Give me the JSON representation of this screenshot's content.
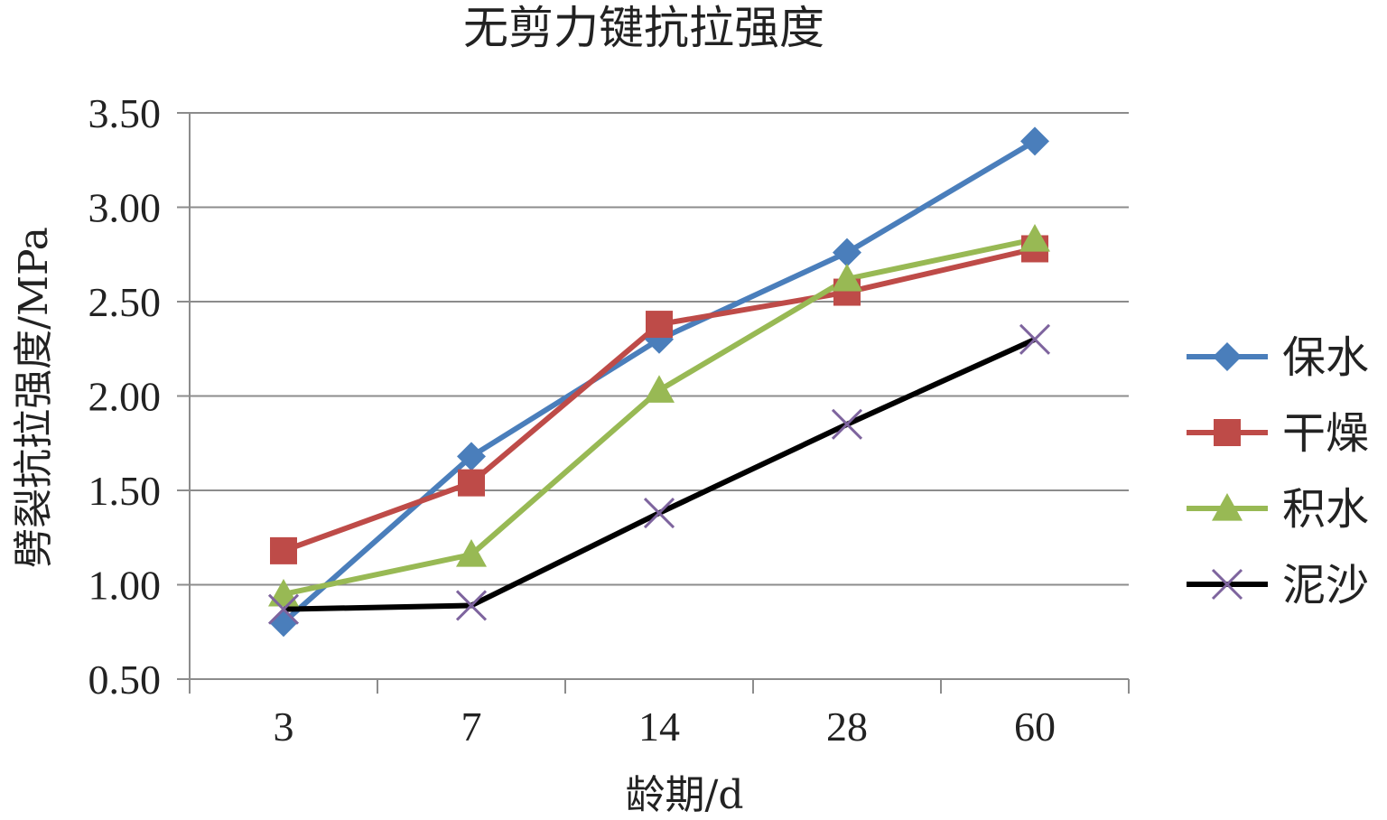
{
  "chart_data": {
    "type": "line",
    "title": "无剪力键抗拉强度",
    "xlabel": "龄期/d",
    "ylabel": "劈裂抗拉强度/MPa",
    "categories": [
      "3",
      "7",
      "14",
      "28",
      "60"
    ],
    "ylim": [
      0.5,
      3.5
    ],
    "yticks": [
      "0.50",
      "1.00",
      "1.50",
      "2.00",
      "2.50",
      "3.00",
      "3.50"
    ],
    "grid": true,
    "legend_position": "right",
    "series": [
      {
        "name": "保水",
        "color": "#4a7ebb",
        "marker": "diamond",
        "values": [
          0.8,
          1.68,
          2.3,
          2.76,
          3.35
        ]
      },
      {
        "name": "干燥",
        "color": "#be4b48",
        "marker": "square",
        "values": [
          1.18,
          1.54,
          2.38,
          2.55,
          2.78
        ]
      },
      {
        "name": "积水",
        "color": "#98b954",
        "marker": "triangle",
        "values": [
          0.95,
          1.16,
          2.03,
          2.62,
          2.83
        ]
      },
      {
        "name": "泥沙",
        "color": "#000000",
        "marker": "x",
        "marker_color": "#7e649e",
        "values": [
          0.87,
          0.89,
          1.38,
          1.85,
          2.3
        ]
      }
    ]
  }
}
